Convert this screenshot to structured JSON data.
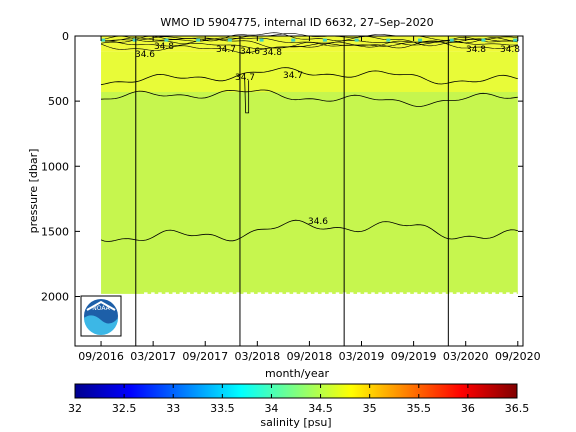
{
  "chart_data": {
    "type": "heatmap",
    "title": "WMO ID 5904775, internal ID 6632, 27–Sep–2020",
    "xlabel": "month/year",
    "ylabel": "pressure [dbar]",
    "x_ticks": [
      "09/2016",
      "03/2017",
      "09/2017",
      "03/2018",
      "09/2018",
      "03/2019",
      "09/2019",
      "03/2020",
      "09/2020"
    ],
    "y_ticks": [
      "0",
      "500",
      "1000",
      "1500",
      "2000"
    ],
    "ylim": [
      0,
      2380
    ],
    "y_reversed": true,
    "colorbar": {
      "label": "salinity [psu]",
      "ticks": [
        "32",
        "32.5",
        "33",
        "33.5",
        "34",
        "34.5",
        "35",
        "35.5",
        "36",
        "36.5"
      ],
      "range": [
        32,
        36.5
      ]
    },
    "contour_labels": [
      "34.8",
      "34.6",
      "34.6",
      "34.8",
      "34.8",
      "34.7",
      "34.7",
      "34.6",
      "34.8",
      "34.7"
    ],
    "layers": [
      {
        "pressure_top": 0,
        "pressure_bottom": 120,
        "salinity": 34.9,
        "color": "#f0fa3a"
      },
      {
        "pressure_top": 120,
        "pressure_bottom": 430,
        "salinity": 34.8,
        "color": "#e8fb38"
      },
      {
        "pressure_top": 430,
        "pressure_bottom": 1980,
        "salinity": 34.6,
        "color": "#c6f64e"
      }
    ],
    "vertical_markers": [
      "01/2017",
      "01/2018",
      "01/2019",
      "01/2020"
    ]
  },
  "logo": {
    "text": "NOAA"
  },
  "colors": {
    "deep_layer": "#c6f64e",
    "mid_layer": "#e8fb38",
    "surface_layer": "#f0fa3a"
  }
}
